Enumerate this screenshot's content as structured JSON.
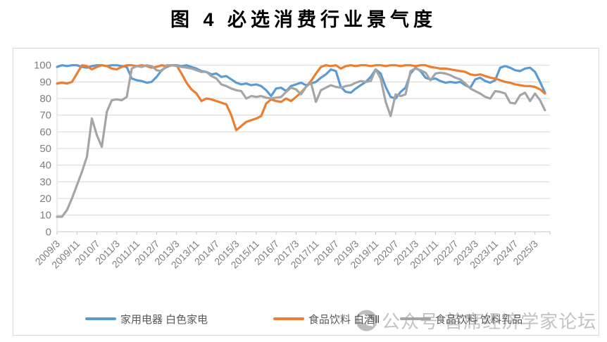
{
  "title": "图 4 必选消费行业景气度",
  "watermark": {
    "icon": "wechat-icon",
    "text": "公众号 首席经济学家论坛"
  },
  "legend": {
    "items": [
      {
        "label": "家用电器 白色家电",
        "color": "#5B9BD5"
      },
      {
        "label": "食品饮料 白酒Ⅱ",
        "color": "#ED7D31"
      },
      {
        "label": "食品饮料 饮料乳品",
        "color": "#A5A5A5"
      }
    ]
  },
  "colors": {
    "blue": "#5B9BD5",
    "orange": "#ED7D31",
    "gray": "#A5A5A5",
    "gridline": "#d9d9d9",
    "axis_line": "#c9c9c9",
    "tick_label": "#7f7f7f",
    "frame_border": "#d9d9d9",
    "legend_text": "#595959",
    "watermark": "#c3c3c3"
  },
  "chart_data": {
    "type": "line",
    "title": "图 4 必选消费行业景气度",
    "xlabel": "",
    "ylabel": "",
    "ylim": [
      0,
      100
    ],
    "y_ticks": [
      0,
      10,
      20,
      30,
      40,
      50,
      60,
      70,
      80,
      90,
      100
    ],
    "grid": true,
    "legend_position": "bottom",
    "x_start": "2009/3",
    "x_end": "2025/7",
    "x_step_months_between_points": 2,
    "x_tick_interval_months": 8,
    "x_tick_labels": [
      "2009/3",
      "2009/11",
      "2010/7",
      "2011/3",
      "2011/11",
      "2012/7",
      "2013/3",
      "2013/11",
      "2014/7",
      "2015/3",
      "2015/11",
      "2016/7",
      "2017/3",
      "2017/11",
      "2018/7",
      "2019/3",
      "2019/11",
      "2020/7",
      "2021/3",
      "2021/11",
      "2022/7",
      "2023/3",
      "2023/11",
      "2024/7",
      "2025/3"
    ],
    "series": [
      {
        "name": "家用电器 白色家电",
        "color": "#5B9BD5",
        "values": [
          99,
          100,
          99.5,
          100,
          100,
          99,
          98.5,
          99.5,
          100,
          100,
          99.5,
          100,
          100,
          99.5,
          99,
          92,
          91,
          90.5,
          89.5,
          90,
          93,
          97,
          99,
          100,
          100,
          99.5,
          100,
          99,
          98,
          96.5,
          96,
          94.5,
          95,
          93,
          93.5,
          91.5,
          89.5,
          88.5,
          89,
          88,
          88.5,
          87.5,
          85,
          81.5,
          86,
          86.5,
          84.5,
          87.5,
          88.5,
          89.5,
          88,
          89,
          90,
          92.5,
          94.5,
          97.5,
          96.5,
          87,
          84,
          83.5,
          86,
          88,
          90,
          93,
          97.5,
          95,
          87,
          81,
          80,
          84,
          86.5,
          95,
          98.5,
          96.5,
          92.5,
          91.5,
          92,
          90.5,
          89.5,
          90,
          89.5,
          90,
          88,
          86.5,
          91.5,
          92.5,
          90.5,
          89.5,
          91,
          98.5,
          99.5,
          98.5,
          97,
          96.5,
          98,
          98.5,
          96,
          90,
          83.5
        ]
      },
      {
        "name": "食品饮料 白酒Ⅱ",
        "color": "#ED7D31",
        "values": [
          89,
          89.5,
          89,
          90,
          95,
          100,
          99.5,
          97.5,
          99,
          100,
          99.5,
          98,
          97.5,
          99,
          100,
          100,
          99.5,
          100,
          99.5,
          98.5,
          99,
          100,
          99.5,
          100,
          100,
          95,
          89.5,
          85.5,
          83,
          78.5,
          80,
          79.5,
          78.5,
          77.5,
          76.5,
          70,
          61,
          63.5,
          66,
          67,
          68,
          69.5,
          77,
          79.5,
          78.5,
          78,
          80,
          78.5,
          81,
          83.5,
          87,
          90.5,
          95,
          99,
          100,
          99.5,
          100,
          98,
          99.5,
          100,
          99.5,
          100,
          100,
          99.5,
          100,
          100,
          99.5,
          100,
          100,
          99.5,
          100,
          100,
          99.5,
          100,
          100,
          99,
          98.5,
          98,
          98,
          97.5,
          97,
          96.5,
          96,
          94.5,
          94,
          94.5,
          93.5,
          92.5,
          92,
          91,
          90,
          89.5,
          88.5,
          88,
          87.5,
          87.5,
          87,
          85.5,
          83
        ]
      },
      {
        "name": "食品饮料 饮料乳品",
        "color": "#A5A5A5",
        "values": [
          9,
          9,
          13,
          20,
          28,
          36,
          45,
          68,
          58,
          51,
          72,
          79,
          79.5,
          79,
          81,
          98,
          99.5,
          99,
          100,
          99.5,
          97,
          96.5,
          100,
          100,
          99.5,
          99,
          98.5,
          98,
          97,
          96,
          96,
          93.5,
          92,
          88.5,
          87.5,
          86,
          85,
          84.5,
          80,
          81.5,
          81,
          81.5,
          80.5,
          80,
          80.5,
          81,
          84,
          86.5,
          85.5,
          82.5,
          87,
          89.5,
          78,
          85,
          86.5,
          88,
          87,
          86.5,
          87.5,
          88,
          89.5,
          90.5,
          90,
          90.5,
          97.5,
          92,
          78,
          69.5,
          82.5,
          81.5,
          82.5,
          96.5,
          98,
          97,
          95.5,
          91,
          95,
          95.5,
          95,
          94,
          92.5,
          91.5,
          89,
          86,
          84.5,
          83,
          81,
          80,
          84.5,
          84,
          83,
          77.5,
          77,
          82,
          83.5,
          78.5,
          83,
          79,
          73
        ]
      }
    ]
  }
}
